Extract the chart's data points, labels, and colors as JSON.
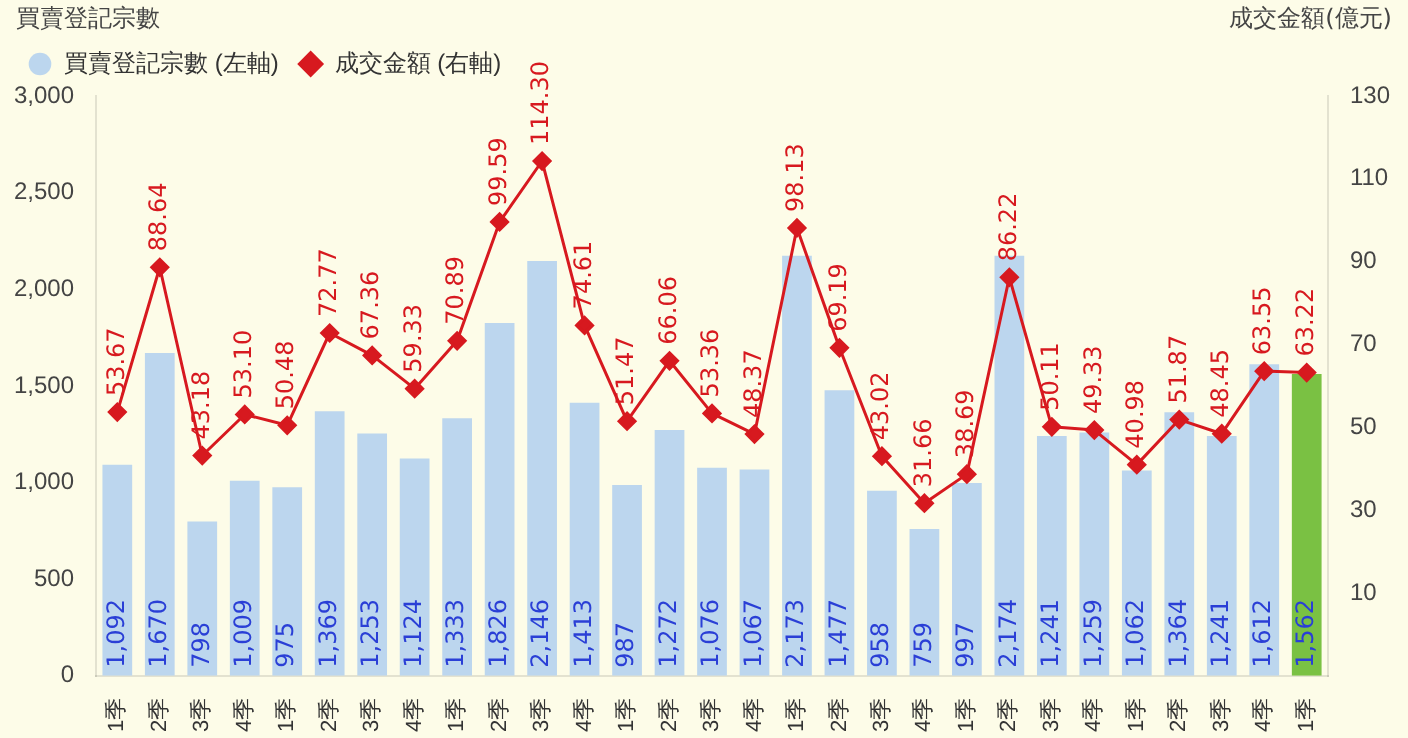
{
  "chart_data": {
    "type": "bar",
    "ylabel": "買賣登記宗數",
    "y2label": "成交金額(億元)",
    "categories": [
      "1季",
      "2季",
      "3季",
      "4季",
      "1季",
      "2季",
      "3季",
      "4季",
      "1季",
      "2季",
      "3季",
      "4季",
      "1季",
      "2季",
      "3季",
      "4季",
      "1季",
      "2季",
      "3季",
      "4季",
      "1季",
      "2季",
      "3季",
      "4季",
      "1季",
      "2季",
      "3季",
      "4季",
      "1季"
    ],
    "series": [
      {
        "name": "買賣登記宗數 (左軸)",
        "colors": [
          "#bcd6ee",
          "#bcd6ee",
          "#bcd6ee",
          "#bcd6ee",
          "#bcd6ee",
          "#bcd6ee",
          "#bcd6ee",
          "#bcd6ee",
          "#bcd6ee",
          "#bcd6ee",
          "#bcd6ee",
          "#bcd6ee",
          "#bcd6ee",
          "#bcd6ee",
          "#bcd6ee",
          "#bcd6ee",
          "#bcd6ee",
          "#bcd6ee",
          "#bcd6ee",
          "#bcd6ee",
          "#bcd6ee",
          "#bcd6ee",
          "#bcd6ee",
          "#bcd6ee",
          "#bcd6ee",
          "#bcd6ee",
          "#bcd6ee",
          "#bcd6ee",
          "#7ac143"
        ],
        "values": [
          1092,
          1670,
          798,
          1009,
          975,
          1369,
          1253,
          1124,
          1333,
          1826,
          2146,
          1413,
          987,
          1272,
          1076,
          1067,
          2173,
          1477,
          958,
          759,
          997,
          2174,
          1241,
          1259,
          1062,
          1364,
          1241,
          1612,
          1562
        ],
        "value_labels": [
          "1,092",
          "1,670",
          "798",
          "1,009",
          "975",
          "1,369",
          "1,253",
          "1,124",
          "1,333",
          "1,826",
          "2,146",
          "1,413",
          "987",
          "1,272",
          "1,076",
          "1,067",
          "2,173",
          "1,477",
          "958",
          "759",
          "997",
          "2,174",
          "1,241",
          "1,259",
          "1,062",
          "1,364",
          "1,241",
          "1,612",
          "1,562"
        ]
      },
      {
        "name": "成交金額 (右軸)",
        "type": "line",
        "axis": "y2",
        "color": "#d7191f",
        "values": [
          53.67,
          88.64,
          43.18,
          53.1,
          50.48,
          72.77,
          67.36,
          59.33,
          70.89,
          99.59,
          114.3,
          74.61,
          51.47,
          66.06,
          53.36,
          48.37,
          98.13,
          69.19,
          43.02,
          31.66,
          38.69,
          86.22,
          50.11,
          49.33,
          40.98,
          51.87,
          48.45,
          63.55,
          63.22
        ],
        "value_labels": [
          "53.67",
          "88.64",
          "43.18",
          "53.10",
          "50.48",
          "72.77",
          "67.36",
          "59.33",
          "70.89",
          "99.59",
          "114.30",
          "74.61",
          "51.47",
          "66.06",
          "53.36",
          "48.37",
          "98.13",
          "69.19",
          "43.02",
          "31.66",
          "38.69",
          "86.22",
          "50.11",
          "49.33",
          "40.98",
          "51.87",
          "48.45",
          "63.55",
          "63.22"
        ]
      }
    ],
    "data_labels": true,
    "ylim": [
      0,
      3000
    ],
    "yticks": [
      0,
      500,
      {
        "value": 1000,
        "label": "1,000"
      },
      {
        "value": 1500,
        "label": "1,500"
      },
      {
        "value": 2000,
        "label": "2,000"
      },
      {
        "value": 2500,
        "label": "2,500"
      },
      {
        "value": 3000,
        "label": "3,000"
      }
    ],
    "y2lim": [
      -10,
      130
    ],
    "y2ticks": [
      10,
      30,
      50,
      70,
      90,
      110,
      130
    ],
    "grid": false,
    "legend": "top left",
    "marker": "diamond",
    "line_style": "solid"
  }
}
